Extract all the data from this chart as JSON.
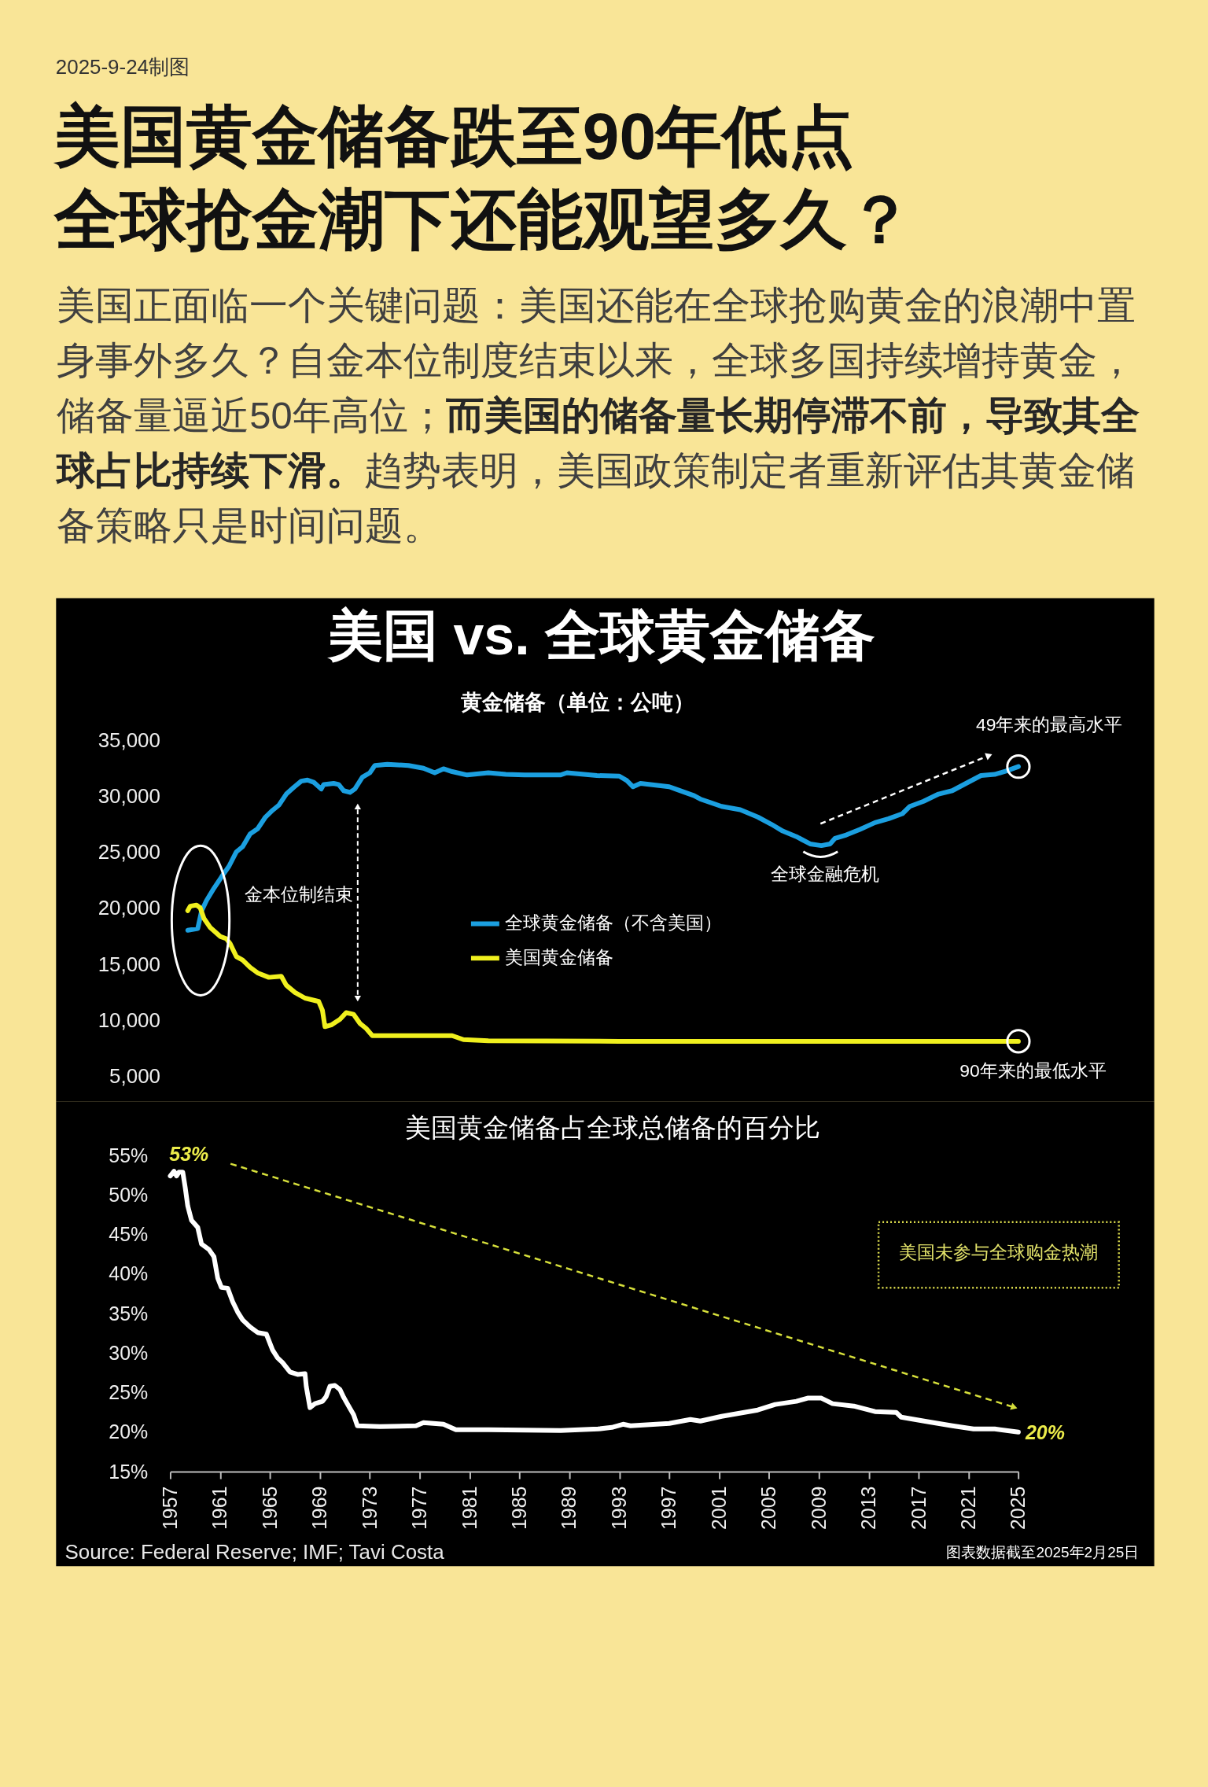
{
  "chart_data": [
    {
      "type": "line",
      "title": "美国黄金储备跌至90年低点全球抢金潮下还能观望多久？",
      "subtitle": "美国 vs. 全球黄金储备",
      "ylabel": "黄金储备（单位：公吨）",
      "xlim": [
        1957,
        2025
      ],
      "ylim": [
        5000,
        35000
      ],
      "yticks": [
        {
          "value": 5000,
          "label": "5,000"
        },
        {
          "value": 10000,
          "label": "10,000"
        },
        {
          "value": 15000,
          "label": "15,000"
        },
        {
          "value": 20000,
          "label": "20,000"
        },
        {
          "value": 25000,
          "label": "25,000"
        },
        {
          "value": 30000,
          "label": "30,000"
        },
        {
          "value": 35000,
          "label": "35,000"
        }
      ],
      "tick_labels": "y",
      "legend": "center",
      "annotations": [
        "2025-9-24制图",
        "美国正面临一个关键问题：美国还能在全球抢购黄金的浪潮中置",
        "身事外多久？自金本位制度结束以来，全球多国持续增持黄金，",
        "储备量逼近50年高位；",
        "而美国的储备量长期停滞不前，导致其全",
        "球占比持续下滑。",
        "趋势表明，美国政策制定者重新评估其黄金储",
        "备策略只是时间问题。",
        "金本位制结束",
        "全球金融危机",
        "49年来的最高水平",
        "90年来的最低水平"
      ],
      "series": [
        {
          "name": "全球黄金储备（不含美国）",
          "color": "#1b9fe0",
          "x": [
            1958.4,
            1959.2,
            1959.5,
            1959.9,
            1960.5,
            1961.1,
            1961.7,
            1962.3,
            1962.8,
            1963.4,
            1964.0,
            1964.6,
            1965.2,
            1965.7,
            1966.3,
            1966.9,
            1967.5,
            1968.0,
            1968.5,
            1969.1,
            1969.3,
            1970.1,
            1970.5,
            1970.9,
            1971.4,
            1971.8,
            1972.4,
            1973.0,
            1973.4,
            1974.4,
            1976.1,
            1977.3,
            1978.2,
            1978.9,
            1979.6,
            1980.8,
            1982.5,
            1983.9,
            1985.4,
            1988.3,
            1988.8,
            1991.2,
            1993.0,
            1993.6,
            1994.1,
            1994.7,
            1997.0,
            1997.5,
            1999.0,
            1999.5,
            2001.2,
            2002.7,
            2004.1,
            2005.2,
            2006.1,
            2007.2,
            2008.3,
            2009.2,
            2009.9,
            2010.3,
            2011.2,
            2012.3,
            2013.5,
            2014.6,
            2015.7,
            2016.3,
            2017.4,
            2018.6,
            2019.7,
            2020.8,
            2022.0,
            2023.1,
            2024.0,
            2025.0
          ],
          "values": [
            18050,
            18200,
            19750,
            20700,
            21800,
            22800,
            23750,
            25050,
            25500,
            26650,
            27100,
            28100,
            28750,
            29200,
            30200,
            30800,
            31350,
            31450,
            31250,
            30650,
            31050,
            31150,
            31050,
            30500,
            30350,
            30650,
            31700,
            32100,
            32750,
            32850,
            32750,
            32500,
            32100,
            32450,
            32200,
            31900,
            32100,
            31950,
            31900,
            31900,
            32100,
            31850,
            31800,
            31400,
            30850,
            31150,
            30850,
            30650,
            30050,
            29750,
            29100,
            28800,
            28150,
            27500,
            26900,
            26400,
            25750,
            25600,
            25750,
            26250,
            26550,
            27050,
            27650,
            28000,
            28450,
            29100,
            29550,
            30200,
            30500,
            31150,
            31850,
            31950,
            32250,
            32650
          ]
        },
        {
          "name": "美国黄金储备",
          "color": "#f0f01e",
          "x": [
            1958.4,
            1958.6,
            1959.1,
            1959.4,
            1959.7,
            1960.2,
            1961.0,
            1961.5,
            1961.8,
            1962.3,
            1962.8,
            1963.4,
            1964.0,
            1964.9,
            1965.9,
            1966.3,
            1967.0,
            1967.8,
            1968.9,
            1969.2,
            1969.4,
            1969.9,
            1970.6,
            1971.1,
            1971.7,
            1972.2,
            1972.7,
            1973.2,
            1976.7,
            1979.6,
            1980.5,
            1982.5,
            1993.0,
            2025.0
          ],
          "values": [
            19800,
            20200,
            20300,
            20050,
            19100,
            18300,
            17500,
            17300,
            16850,
            15700,
            15400,
            14750,
            14250,
            13850,
            13950,
            13150,
            12500,
            12000,
            11700,
            10900,
            9450,
            9600,
            10100,
            10700,
            10550,
            9750,
            9300,
            8650,
            8650,
            8650,
            8300,
            8200,
            8150,
            8150
          ]
        }
      ]
    },
    {
      "type": "line",
      "title": "美国黄金储备占全球总储备的百分比",
      "xlim": [
        1957,
        2025
      ],
      "xticks": [
        1957,
        1961,
        1965,
        1969,
        1973,
        1977,
        1981,
        1985,
        1989,
        1993,
        1997,
        2001,
        2005,
        2009,
        2013,
        2017,
        2021,
        2025
      ],
      "ylim": [
        15,
        55
      ],
      "yticks": [
        {
          "value": 15,
          "label": "15%"
        },
        {
          "value": 20,
          "label": "20%"
        },
        {
          "value": 25,
          "label": "25%"
        },
        {
          "value": 30,
          "label": "30%"
        },
        {
          "value": 35,
          "label": "35%"
        },
        {
          "value": 40,
          "label": "40%"
        },
        {
          "value": 45,
          "label": "45%"
        },
        {
          "value": 50,
          "label": "50%"
        },
        {
          "value": 55,
          "label": "55%"
        }
      ],
      "annotations": [
        "美国未参与全球购金热潮",
        "Source: Federal Reserve; IMF; Tavi Costa",
        "图表数据截至2025年2月25日"
      ],
      "series": [
        {
          "color": "#ffffff",
          "x": [
            1957.0,
            1957.3,
            1957.5,
            1957.7,
            1958.0,
            1958.2,
            1958.4,
            1958.7,
            1959.2,
            1959.5,
            1960.1,
            1960.5,
            1960.8,
            1961.1,
            1961.6,
            1962.0,
            1962.4,
            1962.8,
            1963.4,
            1964.0,
            1964.7,
            1965.2,
            1965.6,
            1966.0,
            1966.6,
            1967.2,
            1967.8,
            1967.9,
            1968.2,
            1968.6,
            1969.2,
            1969.5,
            1969.8,
            1970.2,
            1970.6,
            1970.9,
            1971.3,
            1971.7,
            1972.0,
            1973.8,
            1976.7,
            1977.3,
            1978.9,
            1979.9,
            1982.5,
            1988.3,
            1991.3,
            1992.4,
            1993.3,
            1993.9,
            1997.0,
            1998.7,
            1999.5,
            2001.2,
            2004.1,
            2005.5,
            2007.2,
            2008.1,
            2009.2,
            2010.1,
            2011.8,
            2013.5,
            2015.2,
            2015.6,
            2017.8,
            2019.7,
            2021.4,
            2023.1,
            2025.0
          ],
          "values": [
            52.4,
            53.0,
            52.4,
            52.9,
            52.9,
            50.9,
            48.6,
            46.8,
            45.9,
            43.8,
            43.1,
            42.2,
            39.5,
            38.3,
            38.2,
            36.5,
            35.2,
            34.2,
            33.3,
            32.6,
            32.4,
            30.4,
            29.4,
            28.8,
            27.6,
            27.3,
            27.4,
            25.8,
            23.1,
            23.6,
            23.9,
            24.5,
            25.8,
            25.9,
            25.4,
            24.4,
            23.3,
            22.2,
            20.8,
            20.7,
            20.8,
            21.2,
            21.0,
            20.3,
            20.3,
            20.2,
            20.4,
            20.6,
            21.0,
            20.8,
            21.1,
            21.6,
            21.4,
            22.0,
            22.8,
            23.5,
            23.9,
            24.3,
            24.3,
            23.6,
            23.3,
            22.6,
            22.5,
            21.9,
            21.3,
            20.8,
            20.4,
            20.4,
            20.0
          ],
          "value_labels": [
            null,
            "53%",
            null,
            null,
            null,
            null,
            null,
            null,
            null,
            null,
            null,
            null,
            null,
            null,
            null,
            null,
            null,
            null,
            null,
            null,
            null,
            null,
            null,
            null,
            null,
            null,
            null,
            null,
            null,
            null,
            null,
            null,
            null,
            null,
            null,
            null,
            null,
            null,
            null,
            null,
            null,
            null,
            null,
            null,
            null,
            null,
            null,
            null,
            null,
            null,
            null,
            null,
            null,
            null,
            null,
            null,
            null,
            null,
            null,
            null,
            null,
            null,
            null,
            null,
            null,
            null,
            null,
            null,
            "20%"
          ]
        }
      ]
    }
  ]
}
